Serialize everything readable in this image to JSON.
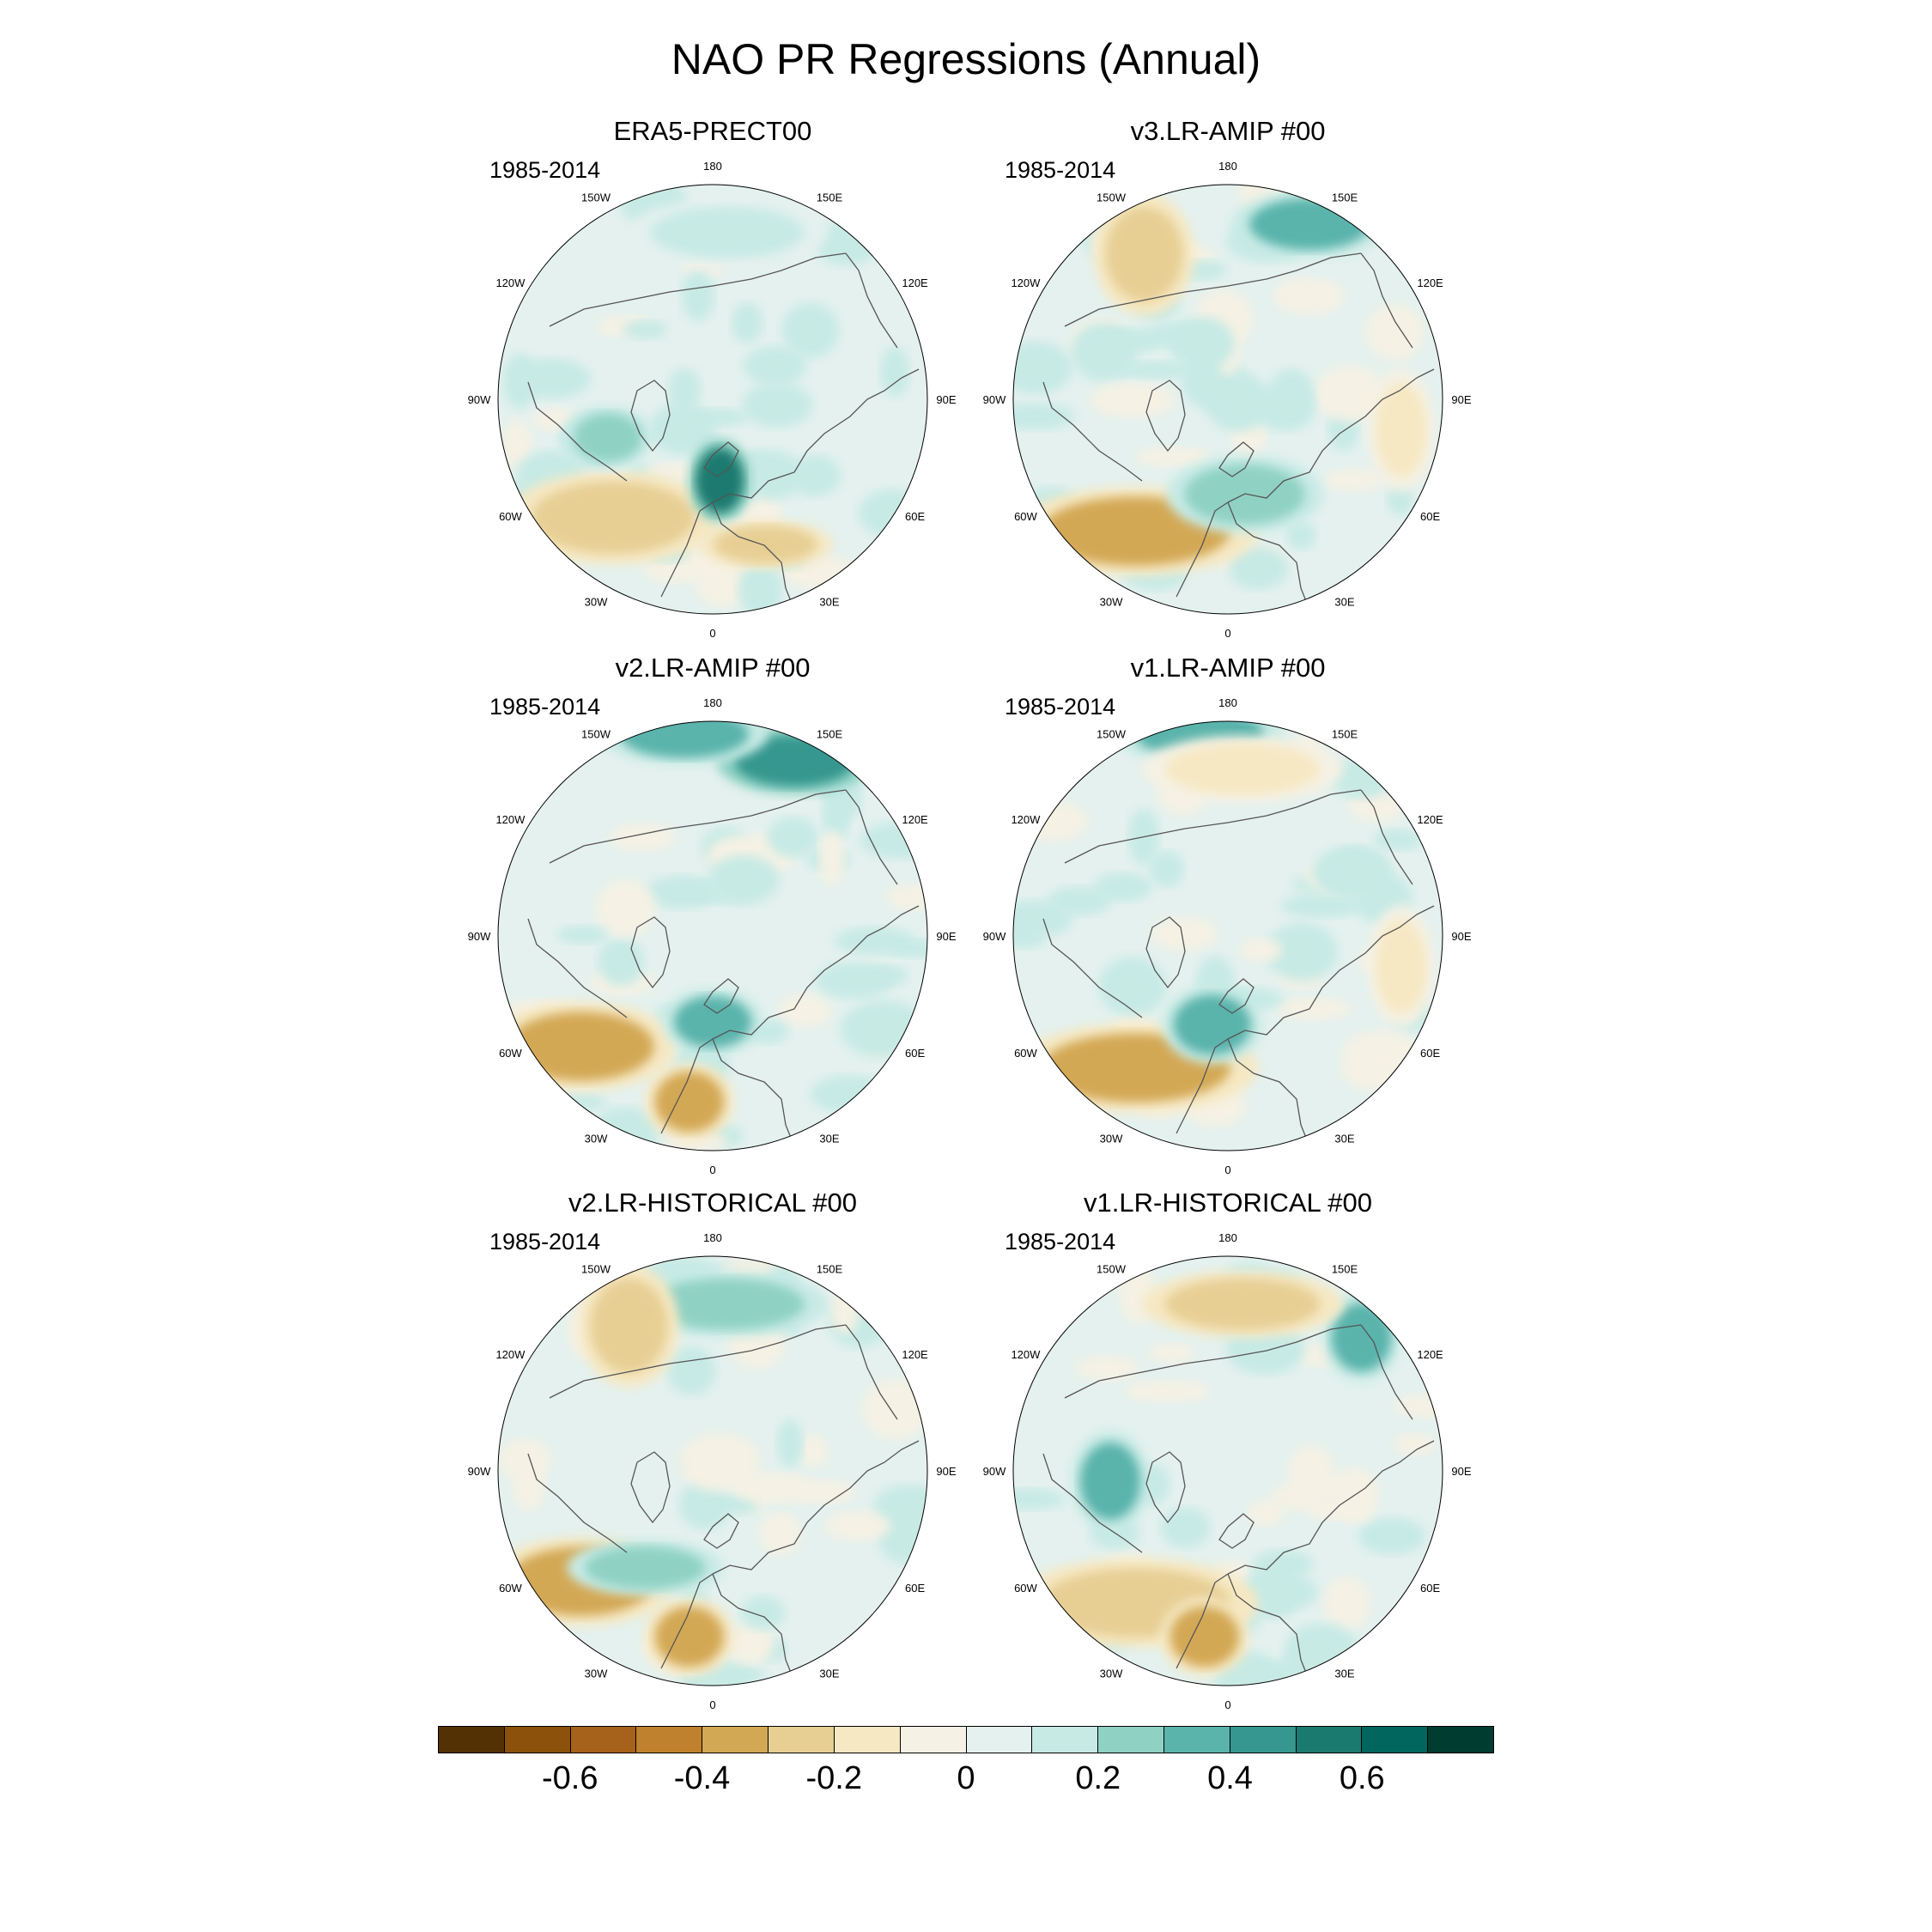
{
  "chart_data": {
    "type": "heatmap",
    "title": "NAO PR Regressions (Annual)",
    "projection": "polar stereographic (Northern Hemisphere)",
    "longitude_labels": [
      "180",
      "150E",
      "120E",
      "90E",
      "60E",
      "30E",
      "0",
      "30W",
      "60W",
      "90W",
      "120W",
      "150W"
    ],
    "panels": [
      {
        "title": "ERA5-PRECT00",
        "period": "1985-2014",
        "features": [
          {
            "region": "North Atlantic (south of Greenland)",
            "value": -0.3
          },
          {
            "region": "Norwegian Sea / west coast of Norway",
            "value": 0.55
          },
          {
            "region": "Labrador / Hudson Bay",
            "value": 0.2
          },
          {
            "region": "Mediterranean",
            "value": -0.25
          },
          {
            "region": "North Pacific",
            "value": 0.1
          }
        ]
      },
      {
        "title": "v3.LR-AMIP  #00",
        "period": "1985-2014",
        "features": [
          {
            "region": "North Atlantic (mid-latitude band)",
            "value": -0.35
          },
          {
            "region": "Northern Europe / Scandinavia",
            "value": 0.25
          },
          {
            "region": "Gulf of Alaska",
            "value": -0.3
          },
          {
            "region": "North Pacific (near Kamchatka)",
            "value": 0.35
          },
          {
            "region": "Central Asia",
            "value": -0.2
          }
        ]
      },
      {
        "title": "v2.LR-AMIP  #00",
        "period": "1985-2014",
        "features": [
          {
            "region": "North Atlantic (east of US coast)",
            "value": -0.4
          },
          {
            "region": "Iberian Peninsula",
            "value": -0.4
          },
          {
            "region": "Norwegian Sea",
            "value": 0.3
          },
          {
            "region": "North Pacific (near Kamchatka)",
            "value": 0.45
          },
          {
            "region": "Bering Sea",
            "value": 0.3
          }
        ]
      },
      {
        "title": "v1.LR-AMIP  #00",
        "period": "1985-2014",
        "features": [
          {
            "region": "North Atlantic (mid-latitude band)",
            "value": -0.35
          },
          {
            "region": "Iceland / Norwegian Sea",
            "value": 0.35
          },
          {
            "region": "Bering Sea",
            "value": 0.3
          },
          {
            "region": "North Pacific",
            "value": -0.2
          },
          {
            "region": "Central Asia",
            "value": -0.15
          }
        ]
      },
      {
        "title": "v2.LR-HISTORICAL  #00",
        "period": "1985-2014",
        "features": [
          {
            "region": "North Atlantic (east of US coast)",
            "value": -0.35
          },
          {
            "region": "Iberian Peninsula",
            "value": -0.4
          },
          {
            "region": "North Atlantic (subpolar)",
            "value": 0.2
          },
          {
            "region": "North Pacific",
            "value": 0.25
          },
          {
            "region": "Gulf of Alaska",
            "value": -0.25
          }
        ]
      },
      {
        "title": "v1.LR-HISTORICAL  #00",
        "period": "1985-2014",
        "features": [
          {
            "region": "North Atlantic (mid-latitude band)",
            "value": -0.3
          },
          {
            "region": "Iberian Peninsula",
            "value": -0.35
          },
          {
            "region": "Hudson Bay",
            "value": 0.3
          },
          {
            "region": "Okhotsk Sea",
            "value": 0.3
          },
          {
            "region": "North Pacific",
            "value": -0.25
          }
        ]
      }
    ],
    "colorbar": {
      "levels": [
        -0.7,
        -0.6,
        -0.5,
        -0.4,
        -0.3,
        -0.2,
        -0.1,
        0,
        0.1,
        0.2,
        0.3,
        0.4,
        0.5,
        0.6,
        0.7
      ],
      "colors": [
        "#543005",
        "#8c510a",
        "#a6611a",
        "#bf812d",
        "#d3a855",
        "#e7cf94",
        "#f6e8c3",
        "#f5f1e4",
        "#e4f1ee",
        "#c7eae5",
        "#8fd2c4",
        "#5ab4ac",
        "#35978f",
        "#1b7a70",
        "#01665e",
        "#003c30"
      ],
      "tick_values": [
        -0.6,
        -0.4,
        -0.2,
        0,
        0.2,
        0.4,
        0.6
      ],
      "tick_labels": [
        "-0.6",
        "-0.4",
        "-0.2",
        "0",
        "0.2",
        "0.4",
        "0.6"
      ]
    }
  }
}
